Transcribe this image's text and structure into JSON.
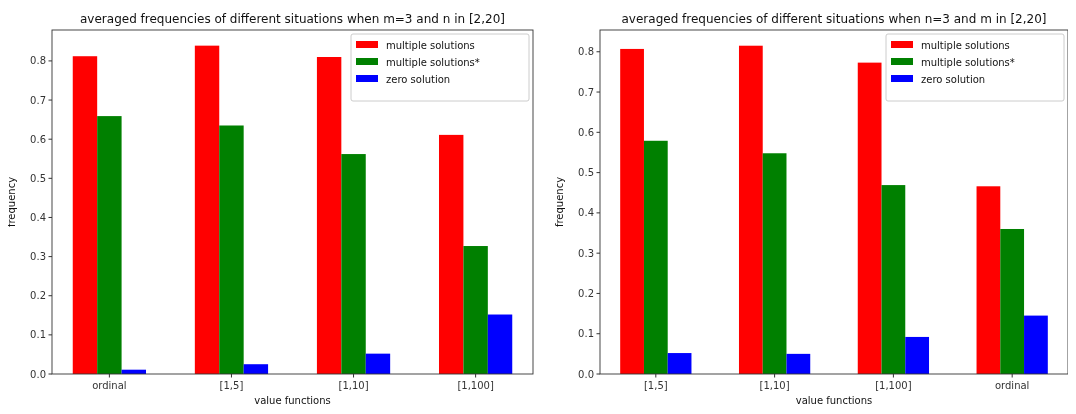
{
  "chart_data": [
    {
      "type": "bar",
      "title": "averaged frequencies of different situations when m=3 and n in [2,20]",
      "xlabel": "value functions",
      "ylabel": "frequency",
      "categories": [
        "ordinal",
        "[1,5]",
        "[1,10]",
        "[1,100]"
      ],
      "series": [
        {
          "name": "multiple solutions",
          "color": "#ff0000",
          "values": [
            0.812,
            0.839,
            0.81,
            0.611
          ]
        },
        {
          "name": "multiple solutions*",
          "color": "#008000",
          "values": [
            0.659,
            0.635,
            0.562,
            0.327
          ]
        },
        {
          "name": "zero solution",
          "color": "#0000ff",
          "values": [
            0.011,
            0.025,
            0.052,
            0.152
          ]
        }
      ],
      "ylim": [
        0,
        0.879
      ],
      "yticks": [
        {
          "value": 0,
          "label": "0.0"
        },
        0.1,
        0.2,
        0.3,
        0.4,
        0.5,
        0.6,
        0.7,
        0.8
      ],
      "grid": false,
      "legend": "top right"
    },
    {
      "type": "bar",
      "title": "averaged frequencies of different situations when n=3 and m in [2,20]",
      "xlabel": "value functions",
      "ylabel": "frequency",
      "categories": [
        "[1,5]",
        "[1,10]",
        "[1,100]",
        "ordinal"
      ],
      "series": [
        {
          "name": "multiple solutions",
          "color": "#ff0000",
          "values": [
            0.807,
            0.815,
            0.773,
            0.466
          ]
        },
        {
          "name": "multiple solutions*",
          "color": "#008000",
          "values": [
            0.579,
            0.548,
            0.469,
            0.36
          ]
        },
        {
          "name": "zero solution",
          "color": "#0000ff",
          "values": [
            0.052,
            0.05,
            0.092,
            0.145
          ]
        }
      ],
      "ylim": [
        0,
        0.854
      ],
      "yticks": [
        {
          "value": 0,
          "label": "0.0"
        },
        0.1,
        0.2,
        0.3,
        0.4,
        0.5,
        0.6,
        0.7,
        0.8
      ],
      "grid": false,
      "legend": "top right"
    }
  ]
}
